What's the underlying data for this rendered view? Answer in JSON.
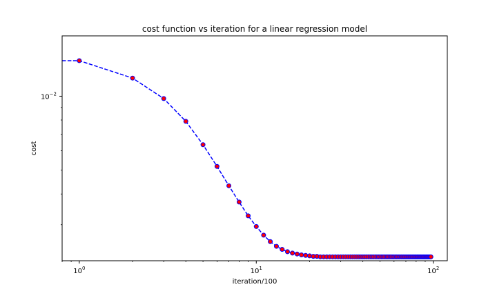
{
  "chart_data": {
    "type": "line",
    "title": "cost function vs iteration for a linear regression model",
    "xlabel": "iteration/100",
    "ylabel": "cost",
    "xscale": "log",
    "yscale": "log",
    "xlim": [
      0.8,
      120
    ],
    "ylim": [
      0.00214,
      0.0176
    ],
    "grid": false,
    "x_tick_values": [
      1,
      10,
      100
    ],
    "x_tick_labels": [
      {
        "base": "10",
        "exp": "0"
      },
      {
        "base": "10",
        "exp": "1"
      },
      {
        "base": "10",
        "exp": "2"
      }
    ],
    "y_tick_values": [
      0.01
    ],
    "y_tick_labels": [
      {
        "base": "10",
        "exp": "−2"
      }
    ],
    "x_minor_ticks": [
      0.8,
      0.9,
      2,
      3,
      4,
      5,
      6,
      7,
      8,
      9,
      20,
      30,
      40,
      50,
      60,
      70,
      80,
      90
    ],
    "y_minor_ticks": [
      0.003,
      0.004,
      0.005,
      0.006,
      0.007,
      0.008,
      0.009
    ],
    "line_color": "#0000ff",
    "marker_fill": "#ff0000",
    "marker_edge": "#0000ff",
    "series": [
      {
        "x": [
          0.8,
          1,
          2,
          3,
          4,
          5,
          6,
          7,
          8,
          9,
          10,
          11,
          12,
          13,
          14,
          15,
          16,
          17,
          18,
          19,
          20,
          21,
          22,
          23,
          24,
          25,
          26,
          27,
          28,
          29,
          30,
          31,
          32,
          33,
          34,
          35,
          36,
          37,
          38,
          39,
          40,
          41,
          42,
          43,
          44,
          45,
          46,
          47,
          48,
          49,
          50,
          51,
          52,
          53,
          54,
          55,
          56,
          57,
          58,
          59,
          60,
          61,
          62,
          63,
          64,
          65,
          66,
          67,
          68,
          69,
          70,
          71,
          72,
          73,
          74,
          75,
          76,
          77,
          78,
          79,
          80,
          81,
          82,
          83,
          84,
          85,
          86,
          87,
          88,
          89,
          90,
          91,
          92,
          93,
          94,
          95,
          96,
          97
        ],
        "y": [
          0.01395,
          0.01395,
          0.01185,
          0.00978,
          0.0079,
          0.00635,
          0.00518,
          0.00432,
          0.00371,
          0.00326,
          0.00295,
          0.00272,
          0.00256,
          0.00245,
          0.00238,
          0.00233,
          0.0023,
          0.00228,
          0.00226,
          0.00225,
          0.00224,
          0.00223,
          0.00223,
          0.00222,
          0.00222,
          0.00222,
          0.00222,
          0.00222,
          0.00222,
          0.00222,
          0.00222,
          0.00222,
          0.00222,
          0.00222,
          0.00222,
          0.00222,
          0.00222,
          0.00222,
          0.00222,
          0.00222,
          0.00222,
          0.00222,
          0.00222,
          0.00222,
          0.00222,
          0.00222,
          0.00222,
          0.00222,
          0.00222,
          0.00222,
          0.00222,
          0.00222,
          0.00222,
          0.00222,
          0.00222,
          0.00222,
          0.00222,
          0.00222,
          0.00222,
          0.00222,
          0.00222,
          0.00222,
          0.00222,
          0.00222,
          0.00222,
          0.00222,
          0.00222,
          0.00222,
          0.00222,
          0.00222,
          0.00222,
          0.00222,
          0.00222,
          0.00222,
          0.00222,
          0.00222,
          0.00222,
          0.00222,
          0.00222,
          0.00222,
          0.00222,
          0.00222,
          0.00222,
          0.00222,
          0.00222,
          0.00222,
          0.00222,
          0.00222,
          0.00222,
          0.00222,
          0.00222,
          0.00222,
          0.00222,
          0.00222,
          0.00222,
          0.00222,
          0.00222,
          0.00222
        ],
        "markers_from_x": 1
      }
    ]
  }
}
